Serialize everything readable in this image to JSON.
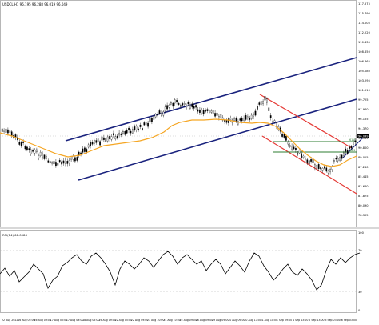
{
  "header": {
    "symbol_info": "USDCL,H1  96.195 96.288 96.019 96.049"
  },
  "main_axis": {
    "labels": [
      "117.575",
      "115.790",
      "114.005",
      "112.220",
      "110.435",
      "108.650",
      "106.865",
      "105.080",
      "103.295",
      "101.510",
      "99.725",
      "97.940",
      "96.155",
      "94.370",
      "92.585",
      "90.800",
      "89.015",
      "87.230",
      "85.445",
      "83.660",
      "81.875",
      "80.090",
      "78.305"
    ],
    "current_price": "96.049",
    "level_labels": [
      "61.8",
      "38.2"
    ]
  },
  "indicator": {
    "title": "RSI(14) 68.0086",
    "axis_labels": [
      "100",
      "70",
      "30",
      "0"
    ]
  },
  "time_axis": [
    "22 Aug 2022",
    "16 Aug 05:00",
    "16 Aug 09:00",
    "17 Aug 05:00",
    "17 Aug 09:00",
    "18 Aug 05:00",
    "19 Aug 09:00",
    "22 Aug 05:00",
    "22 Aug 09:00",
    "23 Aug 10:00",
    "24 Aug 10:00",
    "25 Aug 09:00",
    "26 Aug 09:00",
    "29 Aug 09:00",
    "30 Aug 09:00",
    "30 Aug 17:00",
    "31 Aug 10:00",
    "1 Sep 09:00",
    "1 Sep 13:00",
    "2 Sep 13:00",
    "5 Sep 03:00",
    "6 Sep 03:00"
  ],
  "colors": {
    "up_channel": "#1a237e",
    "down_channel": "#e53935",
    "moving_average": "#f5a623",
    "fib_level": "#2e7d32",
    "candles": "#000000",
    "rsi": "#000000"
  }
}
